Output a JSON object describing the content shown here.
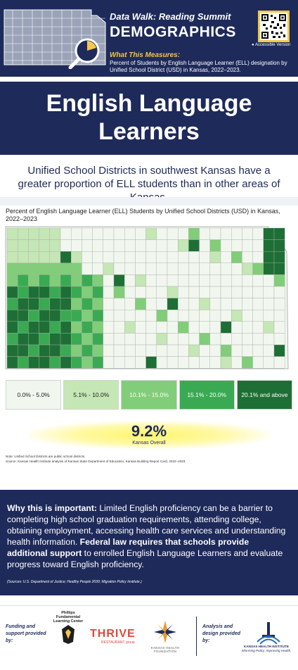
{
  "header": {
    "subtitle": "Data Walk: Reading Summit",
    "title": "DEMOGRAPHICS",
    "accessible": "Accessible Version",
    "what_label": "What This Measures:",
    "what_text": "Percent of Students by English Language Learner (ELL) designation by Unified School District (USD) in Kansas, 2022–2023."
  },
  "main_title": {
    "line1": "English Language",
    "line2": "Learners"
  },
  "headline": "Unified School Districts in southwest Kansas have a greater proportion of ELL students than in other areas of Kansas.",
  "chart_title": "Percent of English Language Learner (ELL) Students by Unified School Districts (USD) in Kansas, 2022–2023",
  "legend": [
    {
      "label": "0.0% - 5.0%",
      "color": "#f1f7ee",
      "text": "#222222"
    },
    {
      "label": "5.1% - 10.0%",
      "color": "#c5e6b5",
      "text": "#222222"
    },
    {
      "label": "10.1% - 15.0%",
      "color": "#82cd79",
      "text": "#ffffff"
    },
    {
      "label": "15.1% - 20.0%",
      "color": "#3aaa52",
      "text": "#ffffff"
    },
    {
      "label": "20.1% and above",
      "color": "#1e6f35",
      "text": "#ffffff"
    }
  ],
  "overall": {
    "value": "9.2%",
    "label": "Kansas Overall"
  },
  "notes": {
    "line1": "Note: Unified School Districts are public school districts.",
    "line2": "Source: Kansas Health Institute analysis of Kansas State Department of Education, Kansas Building Report Card, 2022–2023."
  },
  "why": {
    "lead": "Why this is important:",
    "text1": " Limited English proficiency can be a barrier to completing high school graduation requirements, attending college, obtaining employment, accessing health care services and understanding health information. ",
    "bold2": "Federal law requires that schools provide additional support",
    "text2": " to enrolled English Language Learners and evaluate progress toward English proficiency.",
    "sources": "(Sources: U.S. Department of Justice; Healthy People 2030; Migration Policy Institute.)"
  },
  "footer": {
    "funding_label": "Funding and support provided by:",
    "pflc": "Phillips Fundamental Learning Center",
    "thrive": "THRIVE",
    "thrive_sub": "RESTAURANT group",
    "khf": "KANSAS HEALTH FOUNDATION",
    "analysis_label": "Analysis and design provided by:",
    "khi": "KANSAS HEALTH INSTITUTE",
    "khi_sub": "Informing Policy. Improving Health."
  },
  "colors": {
    "navy": "#1e2a5a",
    "gold": "#f4c64a"
  }
}
